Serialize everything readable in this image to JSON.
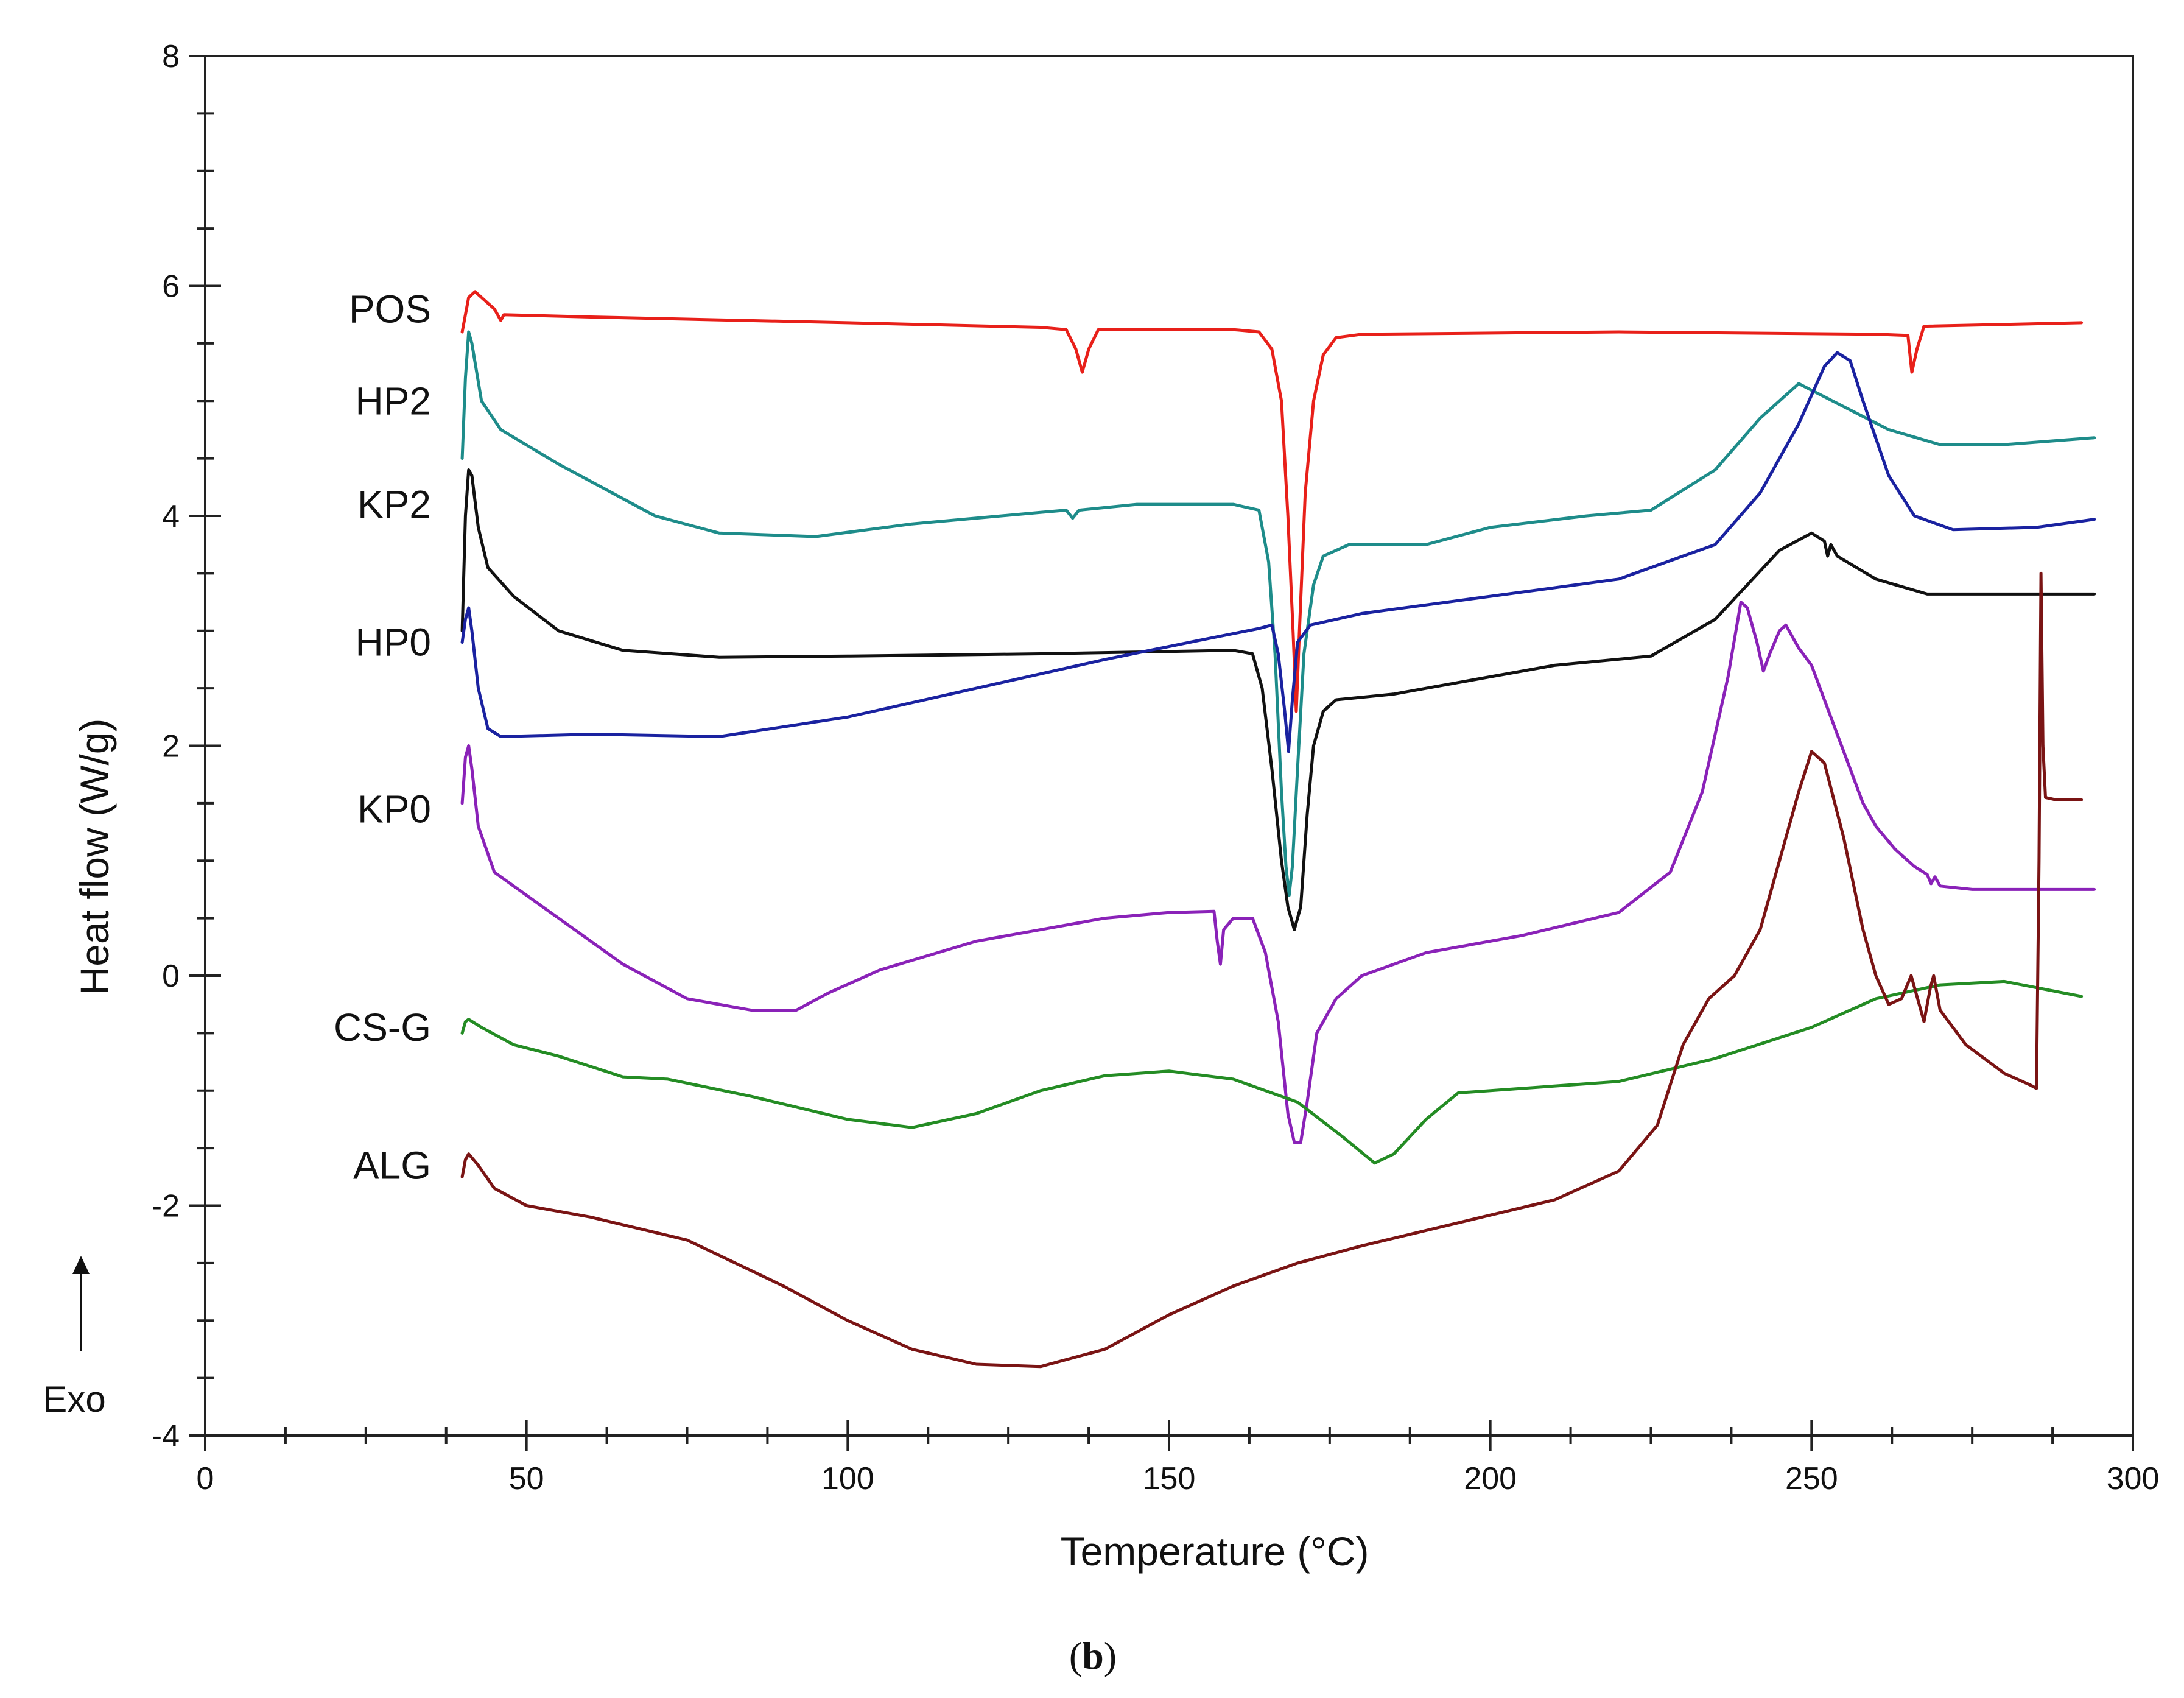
{
  "chart_data": {
    "type": "line",
    "title": "",
    "xlabel": "Temperature (°C)",
    "ylabel": "Heat flow (W/g)",
    "xlim": [
      0,
      300
    ],
    "ylim": [
      -4,
      8
    ],
    "x_ticks": [
      0,
      50,
      100,
      150,
      200,
      250,
      300
    ],
    "y_ticks": [
      -4,
      -2,
      0,
      2,
      4,
      6,
      8
    ],
    "grid": false,
    "legend": "inline labels at left",
    "annotation": "Exo",
    "caption": {
      "open": "(",
      "bold": "b",
      "close": ")"
    },
    "series": [
      {
        "name": "POS",
        "color": "#e8201a",
        "label_y": 5.8,
        "points": [
          [
            40,
            5.6
          ],
          [
            41,
            5.9
          ],
          [
            42,
            5.95
          ],
          [
            44,
            5.85
          ],
          [
            45,
            5.8
          ],
          [
            46,
            5.7
          ],
          [
            46.5,
            5.75
          ],
          [
            60,
            5.73
          ],
          [
            100,
            5.68
          ],
          [
            130,
            5.64
          ],
          [
            134,
            5.62
          ],
          [
            135.5,
            5.45
          ],
          [
            136.5,
            5.25
          ],
          [
            137.5,
            5.45
          ],
          [
            139,
            5.62
          ],
          [
            160,
            5.62
          ],
          [
            164,
            5.6
          ],
          [
            166,
            5.45
          ],
          [
            167.5,
            5.0
          ],
          [
            168.5,
            4.0
          ],
          [
            169.3,
            3.0
          ],
          [
            169.8,
            2.3
          ],
          [
            170.3,
            3.0
          ],
          [
            171.2,
            4.2
          ],
          [
            172.5,
            5.0
          ],
          [
            174,
            5.4
          ],
          [
            176,
            5.55
          ],
          [
            180,
            5.58
          ],
          [
            220,
            5.6
          ],
          [
            260,
            5.58
          ],
          [
            265,
            5.57
          ],
          [
            265.6,
            5.25
          ],
          [
            266.4,
            5.45
          ],
          [
            267.5,
            5.65
          ],
          [
            292,
            5.68
          ]
        ]
      },
      {
        "name": "HP2",
        "color": "#1e8c8a",
        "label_y": 5.0,
        "points": [
          [
            40,
            4.5
          ],
          [
            40.5,
            5.2
          ],
          [
            41,
            5.6
          ],
          [
            41.5,
            5.5
          ],
          [
            43,
            5.0
          ],
          [
            46,
            4.75
          ],
          [
            55,
            4.45
          ],
          [
            70,
            4.0
          ],
          [
            80,
            3.85
          ],
          [
            95,
            3.82
          ],
          [
            110,
            3.93
          ],
          [
            130,
            4.03
          ],
          [
            134,
            4.05
          ],
          [
            135,
            3.98
          ],
          [
            136,
            4.05
          ],
          [
            145,
            4.1
          ],
          [
            160,
            4.1
          ],
          [
            164,
            4.05
          ],
          [
            165.5,
            3.6
          ],
          [
            166.5,
            2.8
          ],
          [
            167.5,
            1.6
          ],
          [
            168.2,
            0.95
          ],
          [
            168.7,
            0.7
          ],
          [
            169.2,
            0.95
          ],
          [
            170,
            1.8
          ],
          [
            171,
            2.8
          ],
          [
            172.5,
            3.4
          ],
          [
            174,
            3.65
          ],
          [
            178,
            3.75
          ],
          [
            190,
            3.75
          ],
          [
            200,
            3.9
          ],
          [
            215,
            4.0
          ],
          [
            225,
            4.05
          ],
          [
            235,
            4.4
          ],
          [
            242,
            4.85
          ],
          [
            248,
            5.15
          ],
          [
            255,
            4.95
          ],
          [
            262,
            4.75
          ],
          [
            270,
            4.62
          ],
          [
            280,
            4.62
          ],
          [
            294,
            4.68
          ]
        ]
      },
      {
        "name": "KP2",
        "color": "#111111",
        "label_y": 4.1,
        "points": [
          [
            40,
            3.0
          ],
          [
            40.5,
            4.0
          ],
          [
            41,
            4.4
          ],
          [
            41.5,
            4.35
          ],
          [
            42.5,
            3.9
          ],
          [
            44,
            3.55
          ],
          [
            48,
            3.3
          ],
          [
            55,
            3.0
          ],
          [
            65,
            2.83
          ],
          [
            80,
            2.77
          ],
          [
            100,
            2.78
          ],
          [
            130,
            2.8
          ],
          [
            160,
            2.83
          ],
          [
            163,
            2.8
          ],
          [
            164.5,
            2.5
          ],
          [
            166,
            1.8
          ],
          [
            167.5,
            1.0
          ],
          [
            168.5,
            0.6
          ],
          [
            169.5,
            0.4
          ],
          [
            170.5,
            0.6
          ],
          [
            171.5,
            1.4
          ],
          [
            172.5,
            2.0
          ],
          [
            174,
            2.3
          ],
          [
            176,
            2.4
          ],
          [
            185,
            2.45
          ],
          [
            195,
            2.55
          ],
          [
            210,
            2.7
          ],
          [
            225,
            2.78
          ],
          [
            235,
            3.1
          ],
          [
            245,
            3.7
          ],
          [
            250,
            3.85
          ],
          [
            252,
            3.78
          ],
          [
            252.5,
            3.65
          ],
          [
            253,
            3.75
          ],
          [
            254,
            3.65
          ],
          [
            260,
            3.45
          ],
          [
            268,
            3.32
          ],
          [
            294,
            3.32
          ]
        ]
      },
      {
        "name": "HP0",
        "color": "#1a22a0",
        "label_y": 2.9,
        "points": [
          [
            40,
            2.9
          ],
          [
            40.5,
            3.1
          ],
          [
            41,
            3.2
          ],
          [
            41.5,
            3.0
          ],
          [
            42.5,
            2.5
          ],
          [
            44,
            2.15
          ],
          [
            46,
            2.08
          ],
          [
            60,
            2.1
          ],
          [
            80,
            2.08
          ],
          [
            100,
            2.25
          ],
          [
            120,
            2.5
          ],
          [
            140,
            2.75
          ],
          [
            155,
            2.92
          ],
          [
            164,
            3.02
          ],
          [
            166,
            3.05
          ],
          [
            167,
            2.8
          ],
          [
            168,
            2.3
          ],
          [
            168.6,
            1.95
          ],
          [
            169.2,
            2.4
          ],
          [
            170,
            2.9
          ],
          [
            172,
            3.05
          ],
          [
            180,
            3.15
          ],
          [
            200,
            3.3
          ],
          [
            220,
            3.45
          ],
          [
            235,
            3.75
          ],
          [
            242,
            4.2
          ],
          [
            248,
            4.8
          ],
          [
            252,
            5.3
          ],
          [
            254,
            5.42
          ],
          [
            256,
            5.35
          ],
          [
            258,
            5.0
          ],
          [
            262,
            4.35
          ],
          [
            266,
            4.0
          ],
          [
            272,
            3.88
          ],
          [
            285,
            3.9
          ],
          [
            294,
            3.97
          ]
        ]
      },
      {
        "name": "KP0",
        "color": "#8a22b8",
        "label_y": 1.45,
        "points": [
          [
            40,
            1.5
          ],
          [
            40.5,
            1.9
          ],
          [
            41,
            2.0
          ],
          [
            41.5,
            1.8
          ],
          [
            42.5,
            1.3
          ],
          [
            45,
            0.9
          ],
          [
            55,
            0.5
          ],
          [
            65,
            0.1
          ],
          [
            75,
            -0.2
          ],
          [
            85,
            -0.3
          ],
          [
            92,
            -0.3
          ],
          [
            97,
            -0.15
          ],
          [
            105,
            0.05
          ],
          [
            120,
            0.3
          ],
          [
            140,
            0.5
          ],
          [
            150,
            0.55
          ],
          [
            157,
            0.56
          ],
          [
            157.5,
            0.3
          ],
          [
            158,
            0.1
          ],
          [
            158.5,
            0.4
          ],
          [
            160,
            0.5
          ],
          [
            163,
            0.5
          ],
          [
            165,
            0.2
          ],
          [
            167,
            -0.4
          ],
          [
            168.5,
            -1.2
          ],
          [
            169.5,
            -1.45
          ],
          [
            170.5,
            -1.45
          ],
          [
            171.5,
            -1.1
          ],
          [
            173,
            -0.5
          ],
          [
            176,
            -0.2
          ],
          [
            180,
            0.0
          ],
          [
            190,
            0.2
          ],
          [
            205,
            0.35
          ],
          [
            220,
            0.55
          ],
          [
            228,
            0.9
          ],
          [
            233,
            1.6
          ],
          [
            237,
            2.6
          ],
          [
            239,
            3.25
          ],
          [
            240,
            3.2
          ],
          [
            241.5,
            2.9
          ],
          [
            242.5,
            2.65
          ],
          [
            243.5,
            2.8
          ],
          [
            245,
            3.0
          ],
          [
            246,
            3.05
          ],
          [
            248,
            2.85
          ],
          [
            250,
            2.7
          ],
          [
            252,
            2.4
          ],
          [
            254,
            2.1
          ],
          [
            256,
            1.8
          ],
          [
            258,
            1.5
          ],
          [
            260,
            1.3
          ],
          [
            263,
            1.1
          ],
          [
            266,
            0.95
          ],
          [
            268,
            0.88
          ],
          [
            268.6,
            0.8
          ],
          [
            269.2,
            0.86
          ],
          [
            270,
            0.78
          ],
          [
            275,
            0.75
          ],
          [
            294,
            0.75
          ]
        ]
      },
      {
        "name": "CS-G",
        "color": "#248c24",
        "label_y": -0.45,
        "points": [
          [
            40,
            -0.5
          ],
          [
            40.5,
            -0.4
          ],
          [
            41,
            -0.38
          ],
          [
            43,
            -0.45
          ],
          [
            48,
            -0.6
          ],
          [
            55,
            -0.7
          ],
          [
            65,
            -0.88
          ],
          [
            72,
            -0.9
          ],
          [
            85,
            -1.05
          ],
          [
            100,
            -1.25
          ],
          [
            110,
            -1.32
          ],
          [
            120,
            -1.2
          ],
          [
            130,
            -1.0
          ],
          [
            140,
            -0.87
          ],
          [
            150,
            -0.83
          ],
          [
            160,
            -0.9
          ],
          [
            170,
            -1.1
          ],
          [
            177,
            -1.4
          ],
          [
            182,
            -1.63
          ],
          [
            185,
            -1.55
          ],
          [
            190,
            -1.25
          ],
          [
            195,
            -1.02
          ],
          [
            205,
            -0.98
          ],
          [
            220,
            -0.92
          ],
          [
            235,
            -0.72
          ],
          [
            250,
            -0.45
          ],
          [
            260,
            -0.2
          ],
          [
            270,
            -0.08
          ],
          [
            280,
            -0.05
          ],
          [
            292,
            -0.18
          ]
        ]
      },
      {
        "name": "ALG",
        "color": "#7a1414",
        "label_y": -1.65,
        "points": [
          [
            40,
            -1.75
          ],
          [
            40.5,
            -1.6
          ],
          [
            41,
            -1.55
          ],
          [
            42.5,
            -1.65
          ],
          [
            45,
            -1.85
          ],
          [
            50,
            -2.0
          ],
          [
            60,
            -2.1
          ],
          [
            75,
            -2.3
          ],
          [
            90,
            -2.7
          ],
          [
            100,
            -3.0
          ],
          [
            110,
            -3.25
          ],
          [
            120,
            -3.38
          ],
          [
            130,
            -3.4
          ],
          [
            140,
            -3.25
          ],
          [
            150,
            -2.95
          ],
          [
            160,
            -2.7
          ],
          [
            170,
            -2.5
          ],
          [
            180,
            -2.35
          ],
          [
            195,
            -2.15
          ],
          [
            210,
            -1.95
          ],
          [
            220,
            -1.7
          ],
          [
            226,
            -1.3
          ],
          [
            230,
            -0.6
          ],
          [
            234,
            -0.2
          ],
          [
            238,
            0.0
          ],
          [
            242,
            0.4
          ],
          [
            245,
            1.0
          ],
          [
            248,
            1.6
          ],
          [
            250,
            1.95
          ],
          [
            252,
            1.85
          ],
          [
            255,
            1.2
          ],
          [
            258,
            0.4
          ],
          [
            260,
            0.0
          ],
          [
            262,
            -0.25
          ],
          [
            264,
            -0.2
          ],
          [
            265.5,
            0.0
          ],
          [
            266.5,
            -0.2
          ],
          [
            267.5,
            -0.4
          ],
          [
            268.5,
            -0.1
          ],
          [
            269,
            0.0
          ],
          [
            270,
            -0.3
          ],
          [
            274,
            -0.6
          ],
          [
            280,
            -0.85
          ],
          [
            284,
            -0.95
          ],
          [
            285,
            -0.98
          ],
          [
            285.4,
            1.0
          ],
          [
            285.7,
            3.5
          ],
          [
            286,
            2.0
          ],
          [
            286.4,
            1.55
          ],
          [
            288,
            1.53
          ],
          [
            292,
            1.53
          ]
        ]
      }
    ]
  }
}
